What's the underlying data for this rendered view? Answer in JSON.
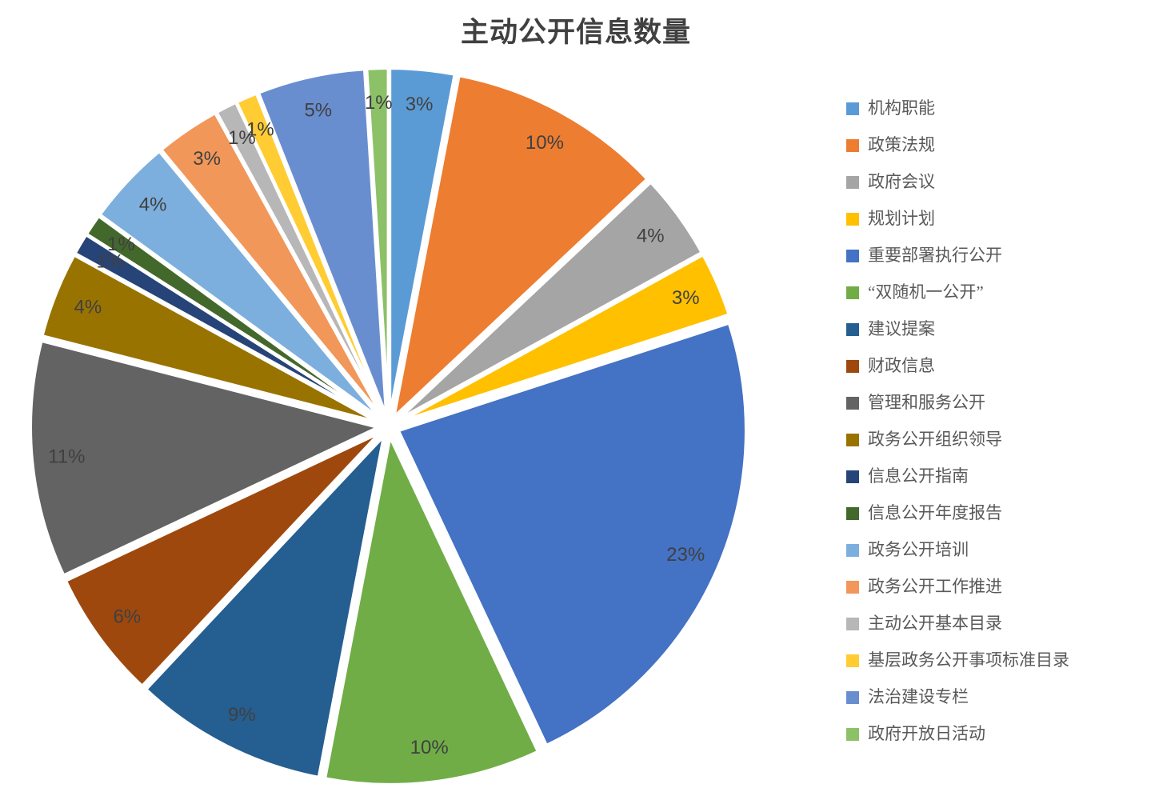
{
  "title": "主动公开信息数量",
  "chart_data": {
    "type": "pie",
    "title": "主动公开信息数量",
    "unit": "percent",
    "legend_position": "right",
    "start_angle_deg": 0,
    "direction": "clockwise",
    "explosion": "slight",
    "slices": [
      {
        "label": "机构职能",
        "value": 3,
        "color": "#5B9BD5"
      },
      {
        "label": "政策法规",
        "value": 10,
        "color": "#ED7D31"
      },
      {
        "label": "政府会议",
        "value": 4,
        "color": "#A5A5A5"
      },
      {
        "label": "规划计划",
        "value": 3,
        "color": "#FFC000"
      },
      {
        "label": "重要部署执行公开",
        "value": 23,
        "color": "#4472C4"
      },
      {
        "label": "“双随机一公开”",
        "value": 10,
        "color": "#70AD47"
      },
      {
        "label": "建议提案",
        "value": 9,
        "color": "#255E91"
      },
      {
        "label": "财政信息",
        "value": 6,
        "color": "#9E480E"
      },
      {
        "label": "管理和服务公开",
        "value": 11,
        "color": "#636363"
      },
      {
        "label": "政务公开组织领导",
        "value": 4,
        "color": "#997300"
      },
      {
        "label": "信息公开指南",
        "value": 1,
        "color": "#264478"
      },
      {
        "label": "信息公开年度报告",
        "value": 1,
        "color": "#43682B"
      },
      {
        "label": "政务公开培训",
        "value": 4,
        "color": "#7CAFDD"
      },
      {
        "label": "政务公开工作推进",
        "value": 3,
        "color": "#F1975A"
      },
      {
        "label": "主动公开基本目录",
        "value": 1,
        "color": "#B7B7B7"
      },
      {
        "label": "基层政务公开事项标准目录",
        "value": 1,
        "color": "#FFCD33"
      },
      {
        "label": "法治建设专栏",
        "value": 5,
        "color": "#698ED0"
      },
      {
        "label": "政府开放日活动",
        "value": 1,
        "color": "#8CC168"
      }
    ],
    "data_labels": [
      "3%",
      "10%",
      "4%",
      "3%",
      "23%",
      "10%",
      "9%",
      "6%",
      "11%",
      "4%",
      "1%",
      "1%",
      "4%",
      "3%",
      "1%",
      "1%",
      "5%",
      "1%"
    ]
  },
  "colors": {
    "background": "#FFFFFF",
    "title_text": "#404040",
    "slice_label_text": "#404040",
    "legend_text": "#595959",
    "slice_border": "#FFFFFF"
  }
}
